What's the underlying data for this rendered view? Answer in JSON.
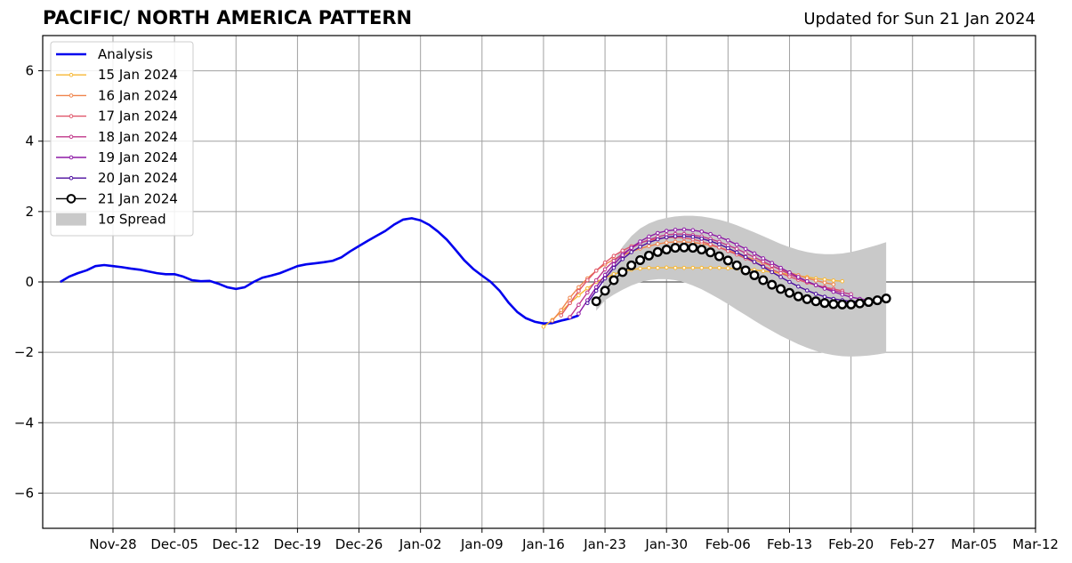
{
  "title": "PACIFIC/ NORTH AMERICA PATTERN",
  "subtitle": "Updated for Sun 21 Jan 2024",
  "chart_data": {
    "type": "line",
    "title": "PACIFIC/ NORTH AMERICA PATTERN",
    "xlabel": "",
    "ylabel": "",
    "ylim": [
      -7,
      7
    ],
    "xlim": [
      "2023-11-20",
      "2024-03-12"
    ],
    "grid": true,
    "legend_placement": "top-left",
    "x_tick_labels": [
      "Nov-28",
      "Dec-05",
      "Dec-12",
      "Dec-19",
      "Dec-26",
      "Jan-02",
      "Jan-09",
      "Jan-16",
      "Jan-23",
      "Jan-30",
      "Feb-06",
      "Feb-13",
      "Feb-20",
      "Feb-27",
      "Mar-05",
      "Mar-12"
    ],
    "x_tick_dates": [
      "2023-11-28",
      "2023-12-05",
      "2023-12-12",
      "2023-12-19",
      "2023-12-26",
      "2024-01-02",
      "2024-01-09",
      "2024-01-16",
      "2024-01-23",
      "2024-01-30",
      "2024-02-06",
      "2024-02-13",
      "2024-02-20",
      "2024-02-27",
      "2024-03-05",
      "2024-03-12"
    ],
    "y_ticks": [
      -6,
      -4,
      -2,
      0,
      2,
      4,
      6
    ],
    "y_tick_labels": [
      "−6",
      "−4",
      "−2",
      "0",
      "2",
      "4",
      "6"
    ],
    "analysis": {
      "name": "Analysis",
      "color": "#0000ee",
      "start_date": "2023-11-22",
      "values": [
        0.0,
        0.15,
        0.25,
        0.33,
        0.45,
        0.48,
        0.45,
        0.42,
        0.38,
        0.35,
        0.3,
        0.25,
        0.22,
        0.22,
        0.15,
        0.05,
        0.02,
        0.03,
        -0.05,
        -0.15,
        -0.2,
        -0.15,
        0.0,
        0.12,
        0.18,
        0.25,
        0.35,
        0.45,
        0.5,
        0.53,
        0.56,
        0.6,
        0.7,
        0.87,
        1.02,
        1.17,
        1.31,
        1.45,
        1.63,
        1.77,
        1.81,
        1.75,
        1.62,
        1.43,
        1.2,
        0.91,
        0.61,
        0.37,
        0.18,
        0.0,
        -0.25,
        -0.58,
        -0.85,
        -1.03,
        -1.13,
        -1.18,
        -1.17,
        -1.1,
        -1.04,
        -0.95
      ]
    },
    "forecasts": [
      {
        "name": "15 Jan 2024",
        "color": "#f7b733",
        "start_date": "2024-01-16",
        "values": [
          -1.27,
          -1.08,
          -0.85,
          -0.6,
          -0.38,
          -0.18,
          0.0,
          0.12,
          0.22,
          0.3,
          0.35,
          0.38,
          0.4,
          0.4,
          0.41,
          0.4,
          0.4,
          0.4,
          0.4,
          0.4,
          0.4,
          0.39,
          0.38,
          0.36,
          0.34,
          0.31,
          0.28,
          0.25,
          0.21,
          0.17,
          0.14,
          0.1,
          0.07,
          0.04,
          0.02
        ]
      },
      {
        "name": "16 Jan 2024",
        "color": "#f0844c",
        "start_date": "2024-01-17",
        "values": [
          -1.1,
          -0.8,
          -0.45,
          -0.15,
          0.1,
          0.32,
          0.5,
          0.64,
          0.76,
          0.86,
          0.95,
          1.02,
          1.08,
          1.12,
          1.14,
          1.14,
          1.12,
          1.09,
          1.04,
          0.98,
          0.9,
          0.81,
          0.72,
          0.63,
          0.54,
          0.45,
          0.36,
          0.27,
          0.19,
          0.11,
          0.04,
          -0.02,
          -0.07
        ]
      },
      {
        "name": "17 Jan 2024",
        "color": "#e0566a",
        "start_date": "2024-01-18",
        "values": [
          -0.95,
          -0.6,
          -0.26,
          0.05,
          0.32,
          0.55,
          0.74,
          0.89,
          1.01,
          1.11,
          1.18,
          1.23,
          1.26,
          1.27,
          1.25,
          1.21,
          1.15,
          1.07,
          0.98,
          0.88,
          0.78,
          0.67,
          0.56,
          0.45,
          0.35,
          0.25,
          0.15,
          0.06,
          -0.02,
          -0.09,
          -0.15,
          -0.2,
          -0.25
        ]
      },
      {
        "name": "18 Jan 2024",
        "color": "#c1378a",
        "start_date": "2024-01-19",
        "values": [
          -1.0,
          -0.65,
          -0.3,
          0.05,
          0.36,
          0.6,
          0.8,
          0.96,
          1.1,
          1.2,
          1.28,
          1.34,
          1.36,
          1.36,
          1.33,
          1.29,
          1.22,
          1.14,
          1.04,
          0.94,
          0.82,
          0.7,
          0.58,
          0.46,
          0.34,
          0.22,
          0.11,
          0.01,
          -0.09,
          -0.17,
          -0.24,
          -0.3,
          -0.35
        ]
      },
      {
        "name": "19 Jan 2024",
        "color": "#8e1aa6",
        "start_date": "2024-01-20",
        "values": [
          -0.9,
          -0.52,
          -0.15,
          0.2,
          0.5,
          0.76,
          0.97,
          1.15,
          1.29,
          1.39,
          1.45,
          1.48,
          1.49,
          1.47,
          1.43,
          1.36,
          1.28,
          1.18,
          1.06,
          0.94,
          0.81,
          0.67,
          0.54,
          0.4,
          0.27,
          0.14,
          0.02,
          -0.09,
          -0.19,
          -0.28,
          -0.36,
          -0.43,
          -0.48,
          -0.52
        ]
      },
      {
        "name": "20 Jan 2024",
        "color": "#4b0c9e",
        "start_date": "2024-01-21",
        "values": [
          -0.6,
          -0.25,
          0.1,
          0.4,
          0.65,
          0.85,
          1.0,
          1.12,
          1.21,
          1.27,
          1.3,
          1.3,
          1.28,
          1.23,
          1.16,
          1.07,
          0.96,
          0.84,
          0.71,
          0.57,
          0.43,
          0.28,
          0.14,
          0.0,
          -0.13,
          -0.24,
          -0.34,
          -0.42,
          -0.48,
          -0.52,
          -0.55,
          -0.56
        ]
      }
    ],
    "latest_forecast": {
      "name": "21 Jan 2024",
      "color": "#000000",
      "start_date": "2024-01-22",
      "values": [
        -0.55,
        -0.25,
        0.05,
        0.28,
        0.47,
        0.62,
        0.75,
        0.85,
        0.92,
        0.97,
        0.98,
        0.97,
        0.92,
        0.84,
        0.73,
        0.61,
        0.47,
        0.33,
        0.19,
        0.05,
        -0.08,
        -0.2,
        -0.31,
        -0.41,
        -0.49,
        -0.55,
        -0.6,
        -0.63,
        -0.64,
        -0.64,
        -0.61,
        -0.57,
        -0.52,
        -0.47
      ]
    },
    "spread": {
      "name": "1σ Spread",
      "color": "#c9c9c9",
      "start_date": "2024-01-22",
      "upper": [
        -0.65,
        0.1,
        0.6,
        1.0,
        1.3,
        1.52,
        1.66,
        1.76,
        1.82,
        1.86,
        1.88,
        1.88,
        1.86,
        1.82,
        1.77,
        1.7,
        1.61,
        1.51,
        1.41,
        1.3,
        1.19,
        1.08,
        0.99,
        0.91,
        0.85,
        0.81,
        0.79,
        0.79,
        0.81,
        0.85,
        0.91,
        0.98,
        1.05,
        1.13
      ],
      "lower": [
        -0.82,
        -0.52,
        -0.36,
        -0.22,
        -0.1,
        -0.01,
        0.05,
        0.08,
        0.08,
        0.05,
        -0.01,
        -0.1,
        -0.21,
        -0.34,
        -0.48,
        -0.63,
        -0.79,
        -0.94,
        -1.1,
        -1.25,
        -1.39,
        -1.53,
        -1.65,
        -1.77,
        -1.87,
        -1.96,
        -2.03,
        -2.08,
        -2.11,
        -2.12,
        -2.11,
        -2.09,
        -2.06,
        -2.02
      ]
    },
    "legend": [
      "Analysis",
      "15 Jan 2024",
      "16 Jan 2024",
      "17 Jan 2024",
      "18 Jan 2024",
      "19 Jan 2024",
      "20 Jan 2024",
      "21 Jan 2024",
      "1σ Spread"
    ]
  }
}
